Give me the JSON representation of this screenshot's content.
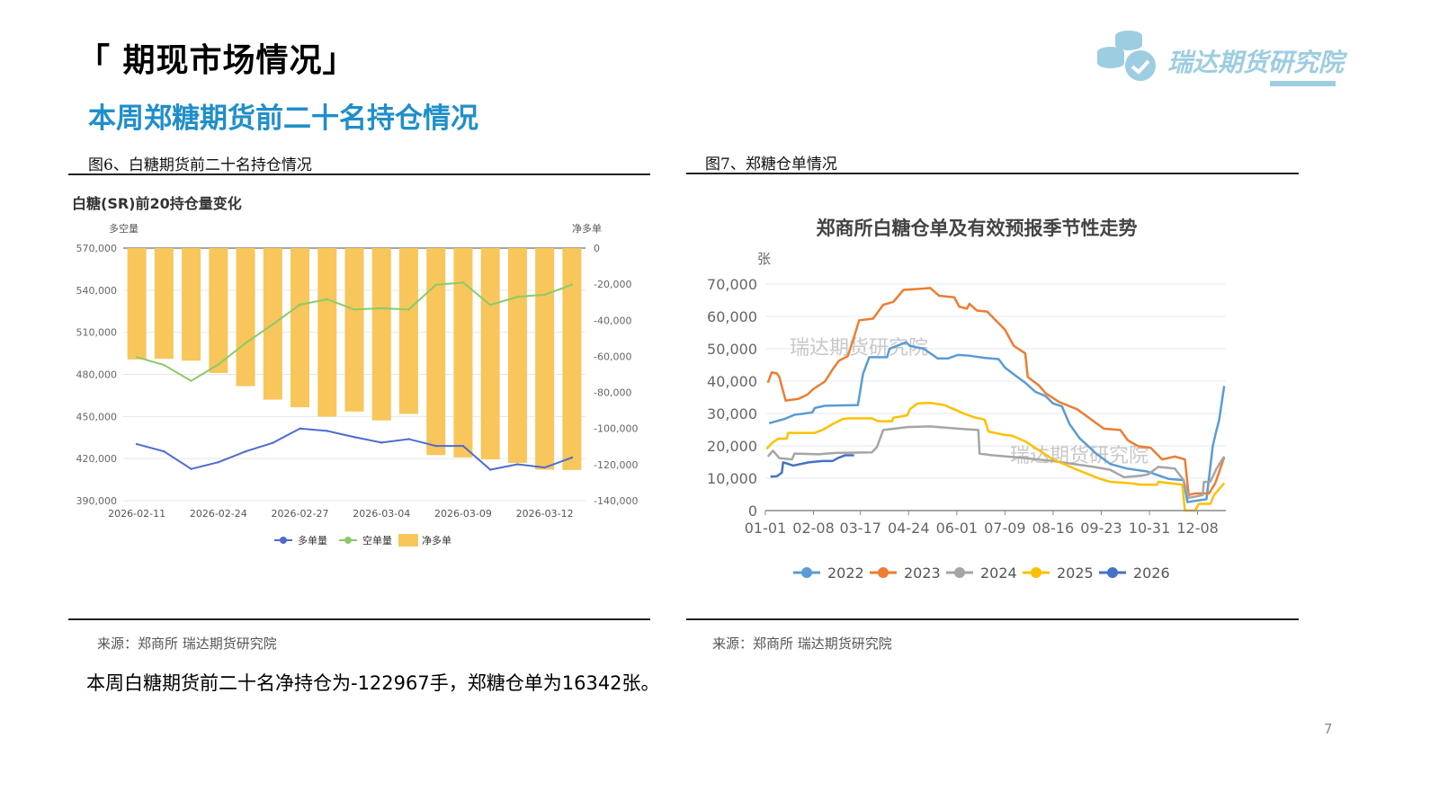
{
  "header": {
    "title": "「 期现市场情况」",
    "subtitle": "本周郑糖期货前二十名持仓情况",
    "logo_text": "瑞达期货研究院"
  },
  "colors": {
    "accent": "#1f8fc9",
    "logo": "#9dcde0"
  },
  "figures": [
    {
      "caption": "图6、白糖期货前二十名持仓情况",
      "source": "来源：郑商所   瑞达期货研究院"
    },
    {
      "caption": "图7、郑糖仓单情况",
      "source": "来源：郑商所  瑞达期货研究院"
    }
  ],
  "summary": "本周白糖期货前二十名净持仓为-122967手，郑糖仓单为16342张。",
  "page_number": "7",
  "chart_data": [
    {
      "type": "bar+line",
      "title": "白糖(SR)前20持仓量变化",
      "ylabel_left": "多空量",
      "ylabel_right": "净多单",
      "ylim_left": [
        390000,
        570000
      ],
      "yticks_left": [
        "570,000",
        "540,000",
        "510,000",
        "480,000",
        "450,000",
        "420,000",
        "390,000"
      ],
      "ylim_right": [
        -140000,
        0
      ],
      "yticks_right": [
        "0",
        "-20,000",
        "-40,000",
        "-60,000",
        "-80,000",
        "-100,000",
        "-120,000",
        "-140,000"
      ],
      "categories": [
        "2026-02-11",
        "",
        "",
        "2026-02-24",
        "",
        "",
        "2026-02-27",
        "",
        "",
        "2026-03-04",
        "",
        "",
        "2026-03-09",
        "",
        "",
        "2026-03-12",
        ""
      ],
      "grid": true,
      "legend_position": "bottom",
      "series": [
        {
          "name": "多单量",
          "type": "line",
          "axis": "left",
          "color": "#4f6bd1",
          "values": [
            430300,
            425100,
            412600,
            417400,
            425100,
            431200,
            441400,
            439700,
            435300,
            431400,
            433900,
            429000,
            429000,
            412100,
            415900,
            413600,
            420700
          ]
        },
        {
          "name": "空单量",
          "type": "line",
          "axis": "left",
          "color": "#8cc96a",
          "values": [
            492300,
            486700,
            475400,
            487100,
            502300,
            515700,
            529700,
            533500,
            526200,
            527200,
            526200,
            543900,
            545400,
            529500,
            535300,
            536800,
            543900
          ]
        },
        {
          "name": "净多单",
          "type": "bar",
          "axis": "right",
          "color": "#f8c65a",
          "values": [
            -61700,
            -61400,
            -62400,
            -69200,
            -76500,
            -84000,
            -88200,
            -93400,
            -90600,
            -95500,
            -91900,
            -114700,
            -116000,
            -117100,
            -119100,
            -122800,
            -122967
          ]
        }
      ]
    },
    {
      "type": "line",
      "title": "郑商所白糖仓单及有效预报季节性走势",
      "ylabel": "张",
      "ylim": [
        0,
        70000
      ],
      "yticks": [
        "70,000",
        "60,000",
        "50,000",
        "40,000",
        "30,000",
        "20,000",
        "10,000",
        "0"
      ],
      "xticks": [
        "01-01",
        "02-08",
        "03-17",
        "04-24",
        "06-01",
        "07-09",
        "08-16",
        "09-23",
        "10-31",
        "12-08"
      ],
      "grid": true,
      "legend_position": "bottom",
      "watermark": "瑞达期货研究院",
      "series": [
        {
          "name": "2022",
          "color": "#5b9bd5",
          "points": [
            [
              "01-04",
              27000
            ],
            [
              "01-16",
              28300
            ],
            [
              "01-24",
              29600
            ],
            [
              "02-07",
              30300
            ],
            [
              "02-09",
              31700
            ],
            [
              "02-17",
              32400
            ],
            [
              "03-15",
              32600
            ],
            [
              "03-19",
              42200
            ],
            [
              "03-24",
              47400
            ],
            [
              "04-07",
              47400
            ],
            [
              "04-09",
              50000
            ],
            [
              "04-22",
              52000
            ],
            [
              "04-25",
              50900
            ],
            [
              "05-06",
              50000
            ],
            [
              "05-17",
              47000
            ],
            [
              "05-25",
              47000
            ],
            [
              "06-02",
              48100
            ],
            [
              "06-10",
              47900
            ],
            [
              "06-23",
              47200
            ],
            [
              "07-04",
              46800
            ],
            [
              "07-09",
              44200
            ],
            [
              "07-17",
              41800
            ],
            [
              "07-25",
              39500
            ],
            [
              "08-02",
              36700
            ],
            [
              "08-10",
              35400
            ],
            [
              "08-16",
              33100
            ],
            [
              "08-23",
              32200
            ],
            [
              "08-29",
              26700
            ],
            [
              "09-06",
              22300
            ],
            [
              "09-19",
              17600
            ],
            [
              "09-30",
              14400
            ],
            [
              "10-13",
              13000
            ],
            [
              "10-29",
              12100
            ],
            [
              "11-15",
              9800
            ],
            [
              "11-27",
              9400
            ],
            [
              "11-30",
              2600
            ],
            [
              "12-06",
              3000
            ],
            [
              "12-15",
              3500
            ],
            [
              "12-20",
              20000
            ],
            [
              "12-23",
              25000
            ],
            [
              "12-25",
              28000
            ],
            [
              "12-29",
              38500
            ]
          ]
        },
        {
          "name": "2023",
          "color": "#ed7d31",
          "points": [
            [
              "01-03",
              39500
            ],
            [
              "01-06",
              42700
            ],
            [
              "01-10",
              42400
            ],
            [
              "01-12",
              41300
            ],
            [
              "01-17",
              34000
            ],
            [
              "01-27",
              34500
            ],
            [
              "02-03",
              35800
            ],
            [
              "02-08",
              37600
            ],
            [
              "02-17",
              39900
            ],
            [
              "02-23",
              43600
            ],
            [
              "02-28",
              46300
            ],
            [
              "03-07",
              47700
            ],
            [
              "03-11",
              52400
            ],
            [
              "03-16",
              58800
            ],
            [
              "03-27",
              59300
            ],
            [
              "04-04",
              63600
            ],
            [
              "04-12",
              64500
            ],
            [
              "04-20",
              68200
            ],
            [
              "05-06",
              68600
            ],
            [
              "05-11",
              68800
            ],
            [
              "05-18",
              66400
            ],
            [
              "05-30",
              65900
            ],
            [
              "06-03",
              63000
            ],
            [
              "06-09",
              62400
            ],
            [
              "06-11",
              63900
            ],
            [
              "06-17",
              61800
            ],
            [
              "06-25",
              61500
            ],
            [
              "07-01",
              59100
            ],
            [
              "07-09",
              55900
            ],
            [
              "07-16",
              50900
            ],
            [
              "07-25",
              48600
            ],
            [
              "07-27",
              41300
            ],
            [
              "08-05",
              38600
            ],
            [
              "08-10",
              36300
            ],
            [
              "08-21",
              33500
            ],
            [
              "09-04",
              31300
            ],
            [
              "09-17",
              27600
            ],
            [
              "09-25",
              25300
            ],
            [
              "10-08",
              24900
            ],
            [
              "10-14",
              21700
            ],
            [
              "10-22",
              19900
            ],
            [
              "11-01",
              19400
            ],
            [
              "11-10",
              15800
            ],
            [
              "11-20",
              16700
            ],
            [
              "11-28",
              15800
            ],
            [
              "12-01",
              4800
            ],
            [
              "12-06",
              5300
            ],
            [
              "12-17",
              5300
            ],
            [
              "12-22",
              8500
            ],
            [
              "12-29",
              16500
            ]
          ]
        },
        {
          "name": "2024",
          "color": "#a5a5a5",
          "points": [
            [
              "01-03",
              16700
            ],
            [
              "01-07",
              18500
            ],
            [
              "01-12",
              16200
            ],
            [
              "01-22",
              15800
            ],
            [
              "01-24",
              17600
            ],
            [
              "02-12",
              17400
            ],
            [
              "02-25",
              17800
            ],
            [
              "03-26",
              18000
            ],
            [
              "03-30",
              19600
            ],
            [
              "04-04",
              24900
            ],
            [
              "04-23",
              25800
            ],
            [
              "05-11",
              26000
            ],
            [
              "06-02",
              25300
            ],
            [
              "06-18",
              24900
            ],
            [
              "06-19",
              17600
            ],
            [
              "06-29",
              17100
            ],
            [
              "07-25",
              16200
            ],
            [
              "08-16",
              15300
            ],
            [
              "09-17",
              13500
            ],
            [
              "09-30",
              12600
            ],
            [
              "10-11",
              10300
            ],
            [
              "10-25",
              10800
            ],
            [
              "10-30",
              11200
            ],
            [
              "11-07",
              13500
            ],
            [
              "11-20",
              13000
            ],
            [
              "11-27",
              9400
            ],
            [
              "12-01",
              3900
            ],
            [
              "12-12",
              4800
            ],
            [
              "12-13",
              8900
            ],
            [
              "12-18",
              8900
            ],
            [
              "12-23",
              13000
            ],
            [
              "12-29",
              16700
            ]
          ]
        },
        {
          "name": "2025",
          "color": "#ffc000",
          "points": [
            [
              "01-02",
              19000
            ],
            [
              "01-06",
              20800
            ],
            [
              "01-11",
              22200
            ],
            [
              "01-18",
              22300
            ],
            [
              "01-19",
              24000
            ],
            [
              "02-09",
              24000
            ],
            [
              "02-15",
              24900
            ],
            [
              "02-23",
              26700
            ],
            [
              "03-03",
              28300
            ],
            [
              "03-08",
              28500
            ],
            [
              "03-26",
              28500
            ],
            [
              "03-31",
              27600
            ],
            [
              "04-11",
              27600
            ],
            [
              "04-12",
              28700
            ],
            [
              "04-23",
              29400
            ],
            [
              "04-25",
              31300
            ],
            [
              "05-01",
              33100
            ],
            [
              "05-11",
              33300
            ],
            [
              "05-22",
              32600
            ],
            [
              "05-30",
              31300
            ],
            [
              "06-07",
              29900
            ],
            [
              "06-15",
              28800
            ],
            [
              "06-23",
              28100
            ],
            [
              "06-26",
              24400
            ],
            [
              "07-07",
              23500
            ],
            [
              "07-15",
              23100
            ],
            [
              "07-25",
              21400
            ],
            [
              "08-16",
              15800
            ],
            [
              "09-04",
              12600
            ],
            [
              "09-22",
              9800
            ],
            [
              "09-30",
              8900
            ],
            [
              "10-14",
              8500
            ],
            [
              "10-25",
              8000
            ],
            [
              "11-06",
              8000
            ],
            [
              "11-07",
              8900
            ],
            [
              "11-26",
              8000
            ],
            [
              "11-28",
              0
            ],
            [
              "12-06",
              0
            ],
            [
              "12-09",
              2100
            ],
            [
              "12-18",
              2100
            ],
            [
              "12-21",
              4800
            ],
            [
              "12-29",
              8500
            ]
          ]
        },
        {
          "name": "2026",
          "color": "#4472c4",
          "points": [
            [
              "01-05",
              10500
            ],
            [
              "01-10",
              10600
            ],
            [
              "01-14",
              11700
            ],
            [
              "01-15",
              14900
            ],
            [
              "01-23",
              13900
            ],
            [
              "02-04",
              14900
            ],
            [
              "02-15",
              15300
            ],
            [
              "02-23",
              15300
            ],
            [
              "02-27",
              16200
            ],
            [
              "03-05",
              17100
            ],
            [
              "03-12",
              17100
            ]
          ]
        }
      ]
    }
  ]
}
